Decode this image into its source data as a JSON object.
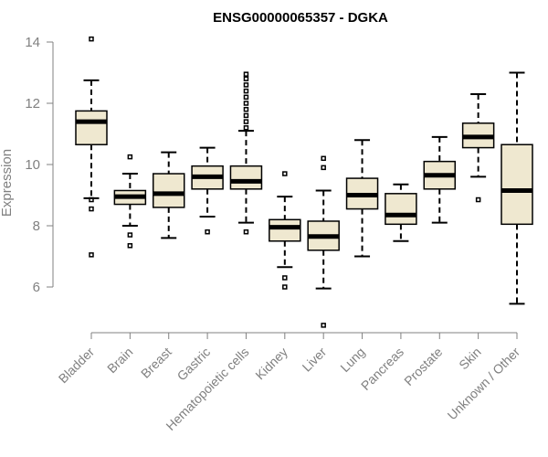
{
  "chart_data": {
    "type": "boxplot",
    "title": "ENSG00000065357 - DGKA",
    "xlabel": "",
    "ylabel": "Expression",
    "ylim": [
      4.5,
      14.5
    ],
    "yticks": [
      6,
      8,
      10,
      12,
      14
    ],
    "grid": false,
    "box_color": "#efe8d0",
    "series": [
      {
        "name": "Bladder",
        "whisker_low": 8.9,
        "q1": 10.65,
        "median": 11.4,
        "q3": 11.75,
        "whisker_high": 12.75,
        "outliers": [
          14.1,
          8.85,
          8.55,
          7.05
        ]
      },
      {
        "name": "Brain",
        "whisker_low": 8.0,
        "q1": 8.7,
        "median": 8.95,
        "q3": 9.15,
        "whisker_high": 9.7,
        "outliers": [
          10.25,
          7.7,
          7.35
        ]
      },
      {
        "name": "Breast",
        "whisker_low": 7.6,
        "q1": 8.6,
        "median": 9.05,
        "q3": 9.7,
        "whisker_high": 10.4,
        "outliers": []
      },
      {
        "name": "Gastric",
        "whisker_low": 8.3,
        "q1": 9.2,
        "median": 9.6,
        "q3": 9.95,
        "whisker_high": 10.55,
        "outliers": [
          7.8
        ]
      },
      {
        "name": "Hematopoietic cells",
        "whisker_low": 8.1,
        "q1": 9.2,
        "median": 9.45,
        "q3": 9.95,
        "whisker_high": 11.1,
        "outliers": [
          7.8,
          11.2,
          11.4,
          11.6,
          11.8,
          12.0,
          12.2,
          12.4,
          12.6,
          12.8,
          12.95
        ]
      },
      {
        "name": "Kidney",
        "whisker_low": 6.65,
        "q1": 7.5,
        "median": 7.95,
        "q3": 8.2,
        "whisker_high": 8.95,
        "outliers": [
          9.7,
          6.3,
          6.0
        ]
      },
      {
        "name": "Liver",
        "whisker_low": 5.95,
        "q1": 7.2,
        "median": 7.65,
        "q3": 8.15,
        "whisker_high": 9.15,
        "outliers": [
          10.2,
          9.9,
          4.75
        ]
      },
      {
        "name": "Lung",
        "whisker_low": 7.0,
        "q1": 8.55,
        "median": 9.0,
        "q3": 9.55,
        "whisker_high": 10.8,
        "outliers": []
      },
      {
        "name": "Pancreas",
        "whisker_low": 7.5,
        "q1": 8.05,
        "median": 8.35,
        "q3": 9.05,
        "whisker_high": 9.35,
        "outliers": []
      },
      {
        "name": "Prostate",
        "whisker_low": 8.1,
        "q1": 9.2,
        "median": 9.65,
        "q3": 10.1,
        "whisker_high": 10.9,
        "outliers": []
      },
      {
        "name": "Skin",
        "whisker_low": 9.6,
        "q1": 10.55,
        "median": 10.9,
        "q3": 11.35,
        "whisker_high": 12.3,
        "outliers": [
          8.85
        ]
      },
      {
        "name": "Unknown / Other",
        "whisker_low": 5.45,
        "q1": 8.05,
        "median": 9.15,
        "q3": 10.65,
        "whisker_high": 13.0,
        "outliers": []
      }
    ]
  }
}
